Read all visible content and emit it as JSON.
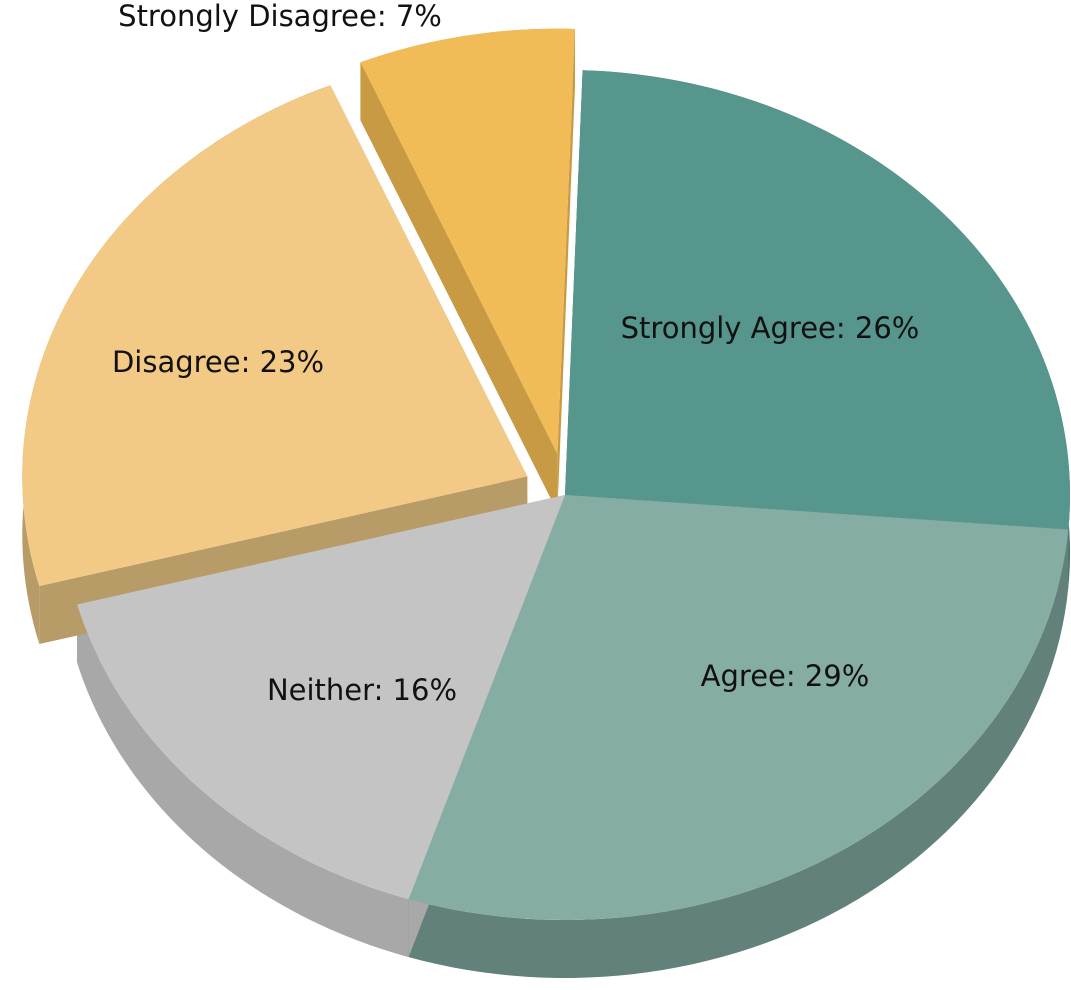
{
  "chart_data": {
    "type": "pie",
    "style": "3d-exploded",
    "slices": [
      {
        "label": "Strongly Agree",
        "value": 26,
        "text": "Strongly Agree: 26%",
        "color": "#56968c",
        "side_color": "#3d7069"
      },
      {
        "label": "Agree",
        "value": 29,
        "text": "Agree: 29%",
        "color": "#86ada4",
        "side_color": "#62817a"
      },
      {
        "label": "Neither",
        "value": 16,
        "text": "Neither: 16%",
        "color": "#c4c4c4",
        "side_color": "#a8a8a8"
      },
      {
        "label": "Disagree",
        "value": 23,
        "text": "Disagree: 23%",
        "color": "#f3ca85",
        "side_color": "#b89c68"
      },
      {
        "label": "Strongly Disagree",
        "value": 7,
        "text": "Strongly Disagree: 7%",
        "color": "#f1bc58",
        "side_color": "#c99a44"
      }
    ]
  }
}
